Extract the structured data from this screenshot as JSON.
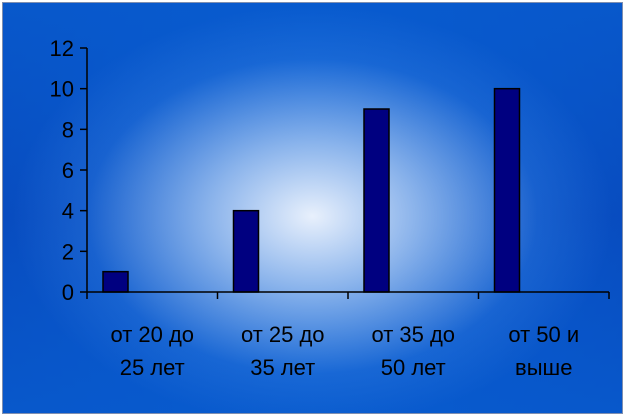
{
  "chart_data": {
    "type": "bar",
    "categories": [
      [
        "от 20 до",
        "25 лет"
      ],
      [
        "от 25 до",
        "35 лет"
      ],
      [
        "от 35 до",
        "50 лет"
      ],
      [
        "от 50 и",
        "выше"
      ]
    ],
    "values": [
      1,
      4,
      9,
      10
    ],
    "ylim": [
      0,
      12
    ],
    "yticks": [
      0,
      2,
      4,
      6,
      8,
      10,
      12
    ],
    "bar_color": "#000080",
    "bar_outline": "#000000",
    "grid": false,
    "legend": "none"
  }
}
